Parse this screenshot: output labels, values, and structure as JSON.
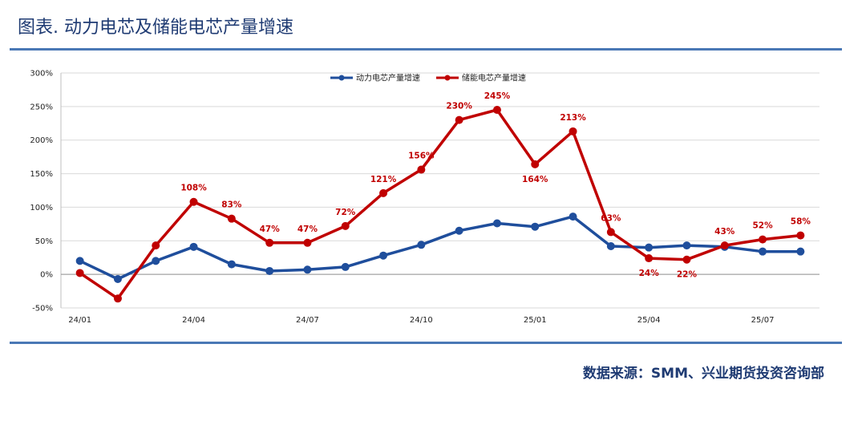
{
  "header": {
    "title": "图表. 动力电芯及储能电芯产量增速"
  },
  "footer": {
    "source": "数据来源：SMM、兴业期货投资咨询部"
  },
  "colors": {
    "accent": "#1f3b73",
    "rule": "#4a78b5"
  },
  "chart_data": {
    "type": "line",
    "categories": [
      "24/01",
      "24/02",
      "24/03",
      "24/04",
      "24/05",
      "24/06",
      "24/07",
      "24/08",
      "24/09",
      "24/10",
      "24/11",
      "24/12",
      "25/01",
      "25/02",
      "25/03",
      "25/04",
      "25/05",
      "25/06",
      "25/07",
      "25/08"
    ],
    "x_tick_labels": [
      "24/01",
      "24/04",
      "24/07",
      "24/10",
      "25/01",
      "25/04",
      "25/07"
    ],
    "y_ticks": [
      -50,
      0,
      50,
      100,
      150,
      200,
      250,
      300
    ],
    "y_tick_labels": [
      "-50%",
      "0%",
      "50%",
      "100%",
      "150%",
      "200%",
      "250%",
      "300%"
    ],
    "ylim": [
      -50,
      300
    ],
    "grid": true,
    "legend_position": "top-center",
    "series": [
      {
        "name": "动力电芯产量增速",
        "color": "#1f4e9c",
        "values": [
          20,
          -7,
          20,
          41,
          15,
          5,
          7,
          11,
          28,
          44,
          65,
          76,
          71,
          86,
          42,
          40,
          43,
          41,
          34,
          34
        ],
        "labels": []
      },
      {
        "name": "储能电芯产量增速",
        "color": "#c00000",
        "values": [
          2,
          -36,
          43,
          108,
          83,
          47,
          47,
          72,
          121,
          156,
          230,
          245,
          164,
          213,
          63,
          24,
          22,
          43,
          52,
          58
        ],
        "labels": [
          "",
          "",
          "",
          "108%",
          "83%",
          "47%",
          "47%",
          "72%",
          "121%",
          "156%",
          "230%",
          "245%",
          "164%",
          "213%",
          "63%",
          "24%",
          "22%",
          "43%",
          "52%",
          "58%"
        ],
        "label_below": [
          false,
          false,
          false,
          false,
          false,
          false,
          false,
          false,
          false,
          false,
          false,
          false,
          true,
          false,
          false,
          true,
          true,
          false,
          false,
          false
        ]
      }
    ]
  }
}
